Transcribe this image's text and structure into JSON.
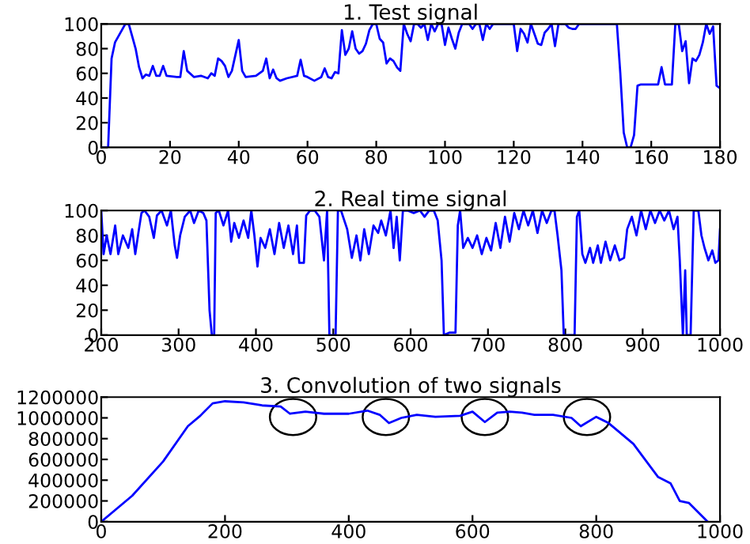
{
  "chart_data": [
    {
      "type": "line",
      "title": "1. Test signal",
      "xlim": [
        0,
        180
      ],
      "ylim": [
        0,
        100
      ],
      "xticks": [
        0,
        20,
        40,
        60,
        80,
        100,
        120,
        140,
        160,
        180
      ],
      "yticks": [
        0,
        20,
        40,
        60,
        80,
        100
      ],
      "grid": false,
      "series": [
        {
          "color": "#0000ff",
          "x": [
            0,
            2,
            3,
            4,
            6,
            7,
            8,
            9,
            10,
            11,
            12,
            13,
            14,
            15,
            16,
            17,
            18,
            19,
            22,
            23,
            24,
            25,
            27,
            29,
            31,
            32,
            33,
            34,
            35,
            36,
            37,
            38,
            40,
            41,
            42,
            45,
            47,
            48,
            49,
            50,
            51,
            52,
            54,
            57,
            58,
            59,
            60,
            62,
            64,
            65,
            66,
            67,
            68,
            69,
            70,
            71,
            72,
            73,
            74,
            75,
            76,
            77,
            78,
            79,
            80,
            81,
            82,
            83,
            84,
            85,
            86,
            87,
            88,
            89,
            90,
            91,
            92,
            93,
            94,
            95,
            96,
            97,
            98,
            99,
            100,
            101,
            102,
            103,
            104,
            105,
            107,
            108,
            109,
            110,
            111,
            112,
            113,
            114,
            116,
            120,
            121,
            122,
            123,
            124,
            125,
            126,
            127,
            128,
            129,
            130,
            131,
            132,
            133,
            135,
            136,
            137,
            138,
            139,
            150,
            151,
            152,
            153,
            154,
            155,
            156,
            157,
            162,
            163,
            164,
            166,
            167,
            168,
            169,
            170,
            171,
            172,
            173,
            174,
            175,
            176,
            177,
            178,
            179,
            180
          ],
          "values": [
            0,
            0,
            72,
            85,
            95,
            100,
            100,
            90,
            80,
            65,
            56,
            59,
            58,
            66,
            58,
            58,
            66,
            58,
            57,
            57,
            78,
            62,
            57,
            58,
            56,
            60,
            58,
            72,
            70,
            66,
            57,
            62,
            87,
            62,
            57,
            58,
            62,
            72,
            56,
            63,
            56,
            54,
            56,
            58,
            71,
            58,
            57,
            54,
            57,
            64,
            57,
            56,
            61,
            60,
            95,
            75,
            80,
            94,
            80,
            76,
            78,
            84,
            95,
            100,
            100,
            88,
            85,
            68,
            72,
            70,
            65,
            62,
            100,
            92,
            86,
            100,
            100,
            97,
            100,
            87,
            100,
            94,
            100,
            100,
            83,
            97,
            88,
            80,
            93,
            100,
            100,
            96,
            100,
            100,
            87,
            100,
            96,
            100,
            100,
            100,
            78,
            96,
            92,
            85,
            100,
            92,
            84,
            83,
            93,
            96,
            100,
            82,
            100,
            100,
            97,
            96,
            96,
            100,
            100,
            60,
            12,
            0,
            0,
            10,
            50,
            51,
            51,
            65,
            51,
            51,
            100,
            100,
            78,
            86,
            52,
            72,
            70,
            75,
            85,
            100,
            92,
            98,
            50,
            48
          ]
        }
      ]
    },
    {
      "type": "line",
      "title": "2. Real time signal",
      "xlim": [
        200,
        1000
      ],
      "ylim": [
        0,
        100
      ],
      "xticks": [
        200,
        300,
        400,
        500,
        600,
        700,
        800,
        900,
        1000
      ],
      "yticks": [
        0,
        20,
        40,
        60,
        80,
        100
      ],
      "grid": false,
      "series": [
        {
          "color": "#0000ff",
          "x": [
            200,
            203,
            207,
            212,
            218,
            222,
            228,
            235,
            240,
            244,
            248,
            252,
            256,
            262,
            268,
            272,
            278,
            285,
            290,
            295,
            298,
            302,
            308,
            315,
            320,
            326,
            332,
            336,
            340,
            343,
            346,
            348,
            352,
            358,
            364,
            368,
            372,
            378,
            384,
            390,
            394,
            398,
            402,
            406,
            412,
            418,
            424,
            430,
            436,
            442,
            448,
            453,
            456,
            462,
            465,
            470,
            476,
            482,
            488,
            492,
            495,
            503,
            506,
            510,
            518,
            524,
            530,
            535,
            540,
            546,
            552,
            558,
            562,
            568,
            574,
            578,
            582,
            586,
            590,
            596,
            604,
            612,
            618,
            624,
            630,
            635,
            640,
            643,
            650,
            658,
            661,
            664,
            668,
            674,
            680,
            686,
            692,
            698,
            704,
            710,
            716,
            722,
            728,
            734,
            740,
            746,
            752,
            758,
            764,
            770,
            776,
            782,
            786,
            790,
            795,
            798,
            812,
            815,
            818,
            822,
            826,
            832,
            836,
            842,
            846,
            852,
            858,
            864,
            870,
            876,
            880,
            886,
            892,
            898,
            904,
            910,
            916,
            922,
            928,
            934,
            940,
            945,
            948,
            952,
            955,
            957,
            962,
            966,
            972,
            976,
            980,
            985,
            990,
            994,
            998,
            1000
          ],
          "values": [
            100,
            65,
            80,
            65,
            88,
            65,
            80,
            70,
            85,
            65,
            82,
            98,
            100,
            95,
            78,
            96,
            100,
            88,
            100,
            72,
            62,
            80,
            95,
            100,
            90,
            100,
            98,
            92,
            20,
            0,
            0,
            98,
            100,
            88,
            100,
            75,
            90,
            78,
            92,
            78,
            100,
            80,
            55,
            78,
            70,
            85,
            65,
            90,
            70,
            88,
            65,
            88,
            58,
            58,
            96,
            100,
            100,
            95,
            60,
            100,
            0,
            0,
            100,
            100,
            85,
            62,
            80,
            60,
            85,
            65,
            88,
            82,
            92,
            80,
            100,
            70,
            95,
            60,
            100,
            100,
            98,
            100,
            95,
            100,
            100,
            92,
            60,
            0,
            2,
            2,
            88,
            100,
            70,
            78,
            70,
            80,
            65,
            78,
            68,
            90,
            70,
            95,
            75,
            98,
            85,
            100,
            88,
            100,
            82,
            100,
            90,
            100,
            100,
            80,
            52,
            0,
            0,
            95,
            100,
            65,
            58,
            70,
            58,
            72,
            58,
            75,
            60,
            72,
            60,
            62,
            85,
            95,
            80,
            100,
            85,
            100,
            90,
            100,
            92,
            100,
            85,
            95,
            60,
            0,
            52,
            0,
            0,
            100,
            100,
            80,
            70,
            60,
            68,
            58,
            60,
            85
          ]
        }
      ]
    },
    {
      "type": "line",
      "title": "3. Convolution of two signals",
      "xlim": [
        0,
        1000
      ],
      "ylim": [
        0,
        1200000
      ],
      "xticks": [
        0,
        200,
        400,
        600,
        800,
        1000
      ],
      "yticks": [
        0,
        200000,
        400000,
        600000,
        800000,
        1000000,
        1200000
      ],
      "grid": false,
      "series": [
        {
          "color": "#0000ff",
          "x": [
            0,
            50,
            100,
            140,
            160,
            180,
            200,
            230,
            260,
            290,
            305,
            330,
            360,
            400,
            430,
            450,
            465,
            485,
            510,
            540,
            580,
            600,
            620,
            640,
            660,
            680,
            700,
            730,
            760,
            775,
            800,
            820,
            860,
            900,
            920,
            935,
            950,
            980
          ],
          "values": [
            0,
            250000,
            580000,
            920000,
            1020000,
            1140000,
            1160000,
            1150000,
            1120000,
            1110000,
            1040000,
            1060000,
            1040000,
            1040000,
            1070000,
            1030000,
            950000,
            1000000,
            1030000,
            1010000,
            1020000,
            1060000,
            960000,
            1050000,
            1060000,
            1050000,
            1030000,
            1030000,
            1000000,
            920000,
            1010000,
            950000,
            750000,
            430000,
            370000,
            200000,
            180000,
            0
          ]
        }
      ]
    }
  ]
}
